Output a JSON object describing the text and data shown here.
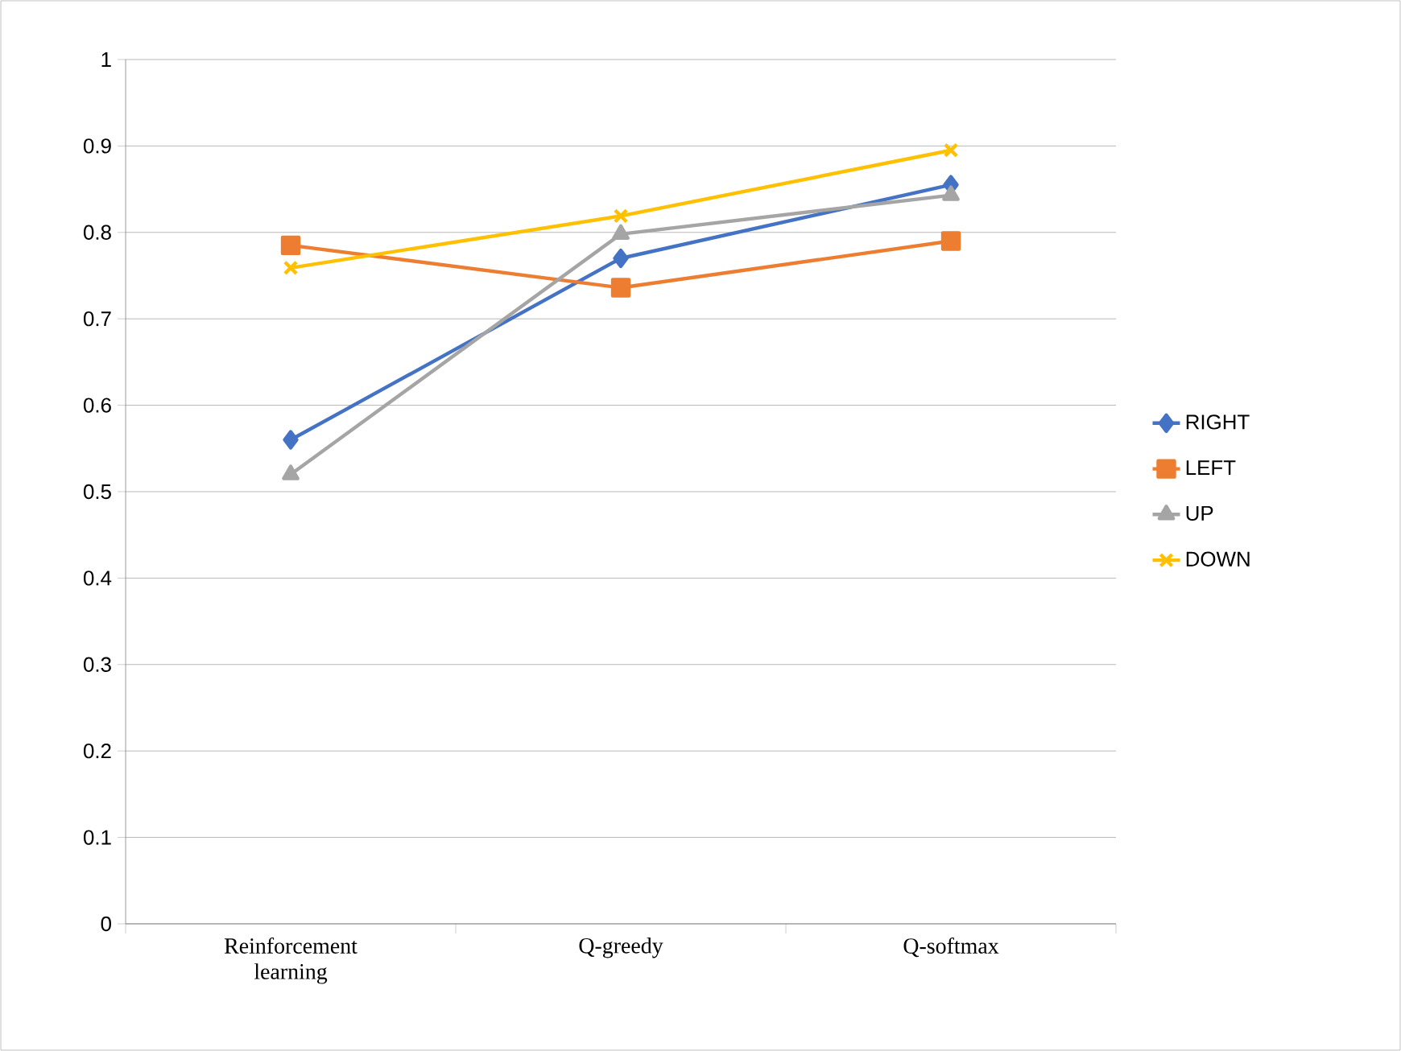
{
  "chart_data": {
    "type": "line",
    "categories": [
      "Reinforcement learning",
      "Q-greedy",
      "Q-softmax"
    ],
    "series": [
      {
        "name": "RIGHT",
        "color": "#4472c4",
        "marker": "diamond",
        "values": [
          0.56,
          0.77,
          0.855
        ]
      },
      {
        "name": "LEFT",
        "color": "#ed7d31",
        "marker": "square",
        "values": [
          0.785,
          0.736,
          0.79
        ]
      },
      {
        "name": "UP",
        "color": "#a5a5a5",
        "marker": "triangle",
        "values": [
          0.52,
          0.798,
          0.843
        ]
      },
      {
        "name": "DOWN",
        "color": "#ffc000",
        "marker": "cross",
        "values": [
          0.759,
          0.819,
          0.895
        ]
      }
    ],
    "ylim": [
      0,
      1
    ],
    "yticks": [
      0,
      0.1,
      0.2,
      0.3,
      0.4,
      0.5,
      0.6,
      0.7,
      0.8,
      0.9,
      1
    ],
    "grid": "y",
    "legend": "right",
    "line_style": "solid"
  }
}
